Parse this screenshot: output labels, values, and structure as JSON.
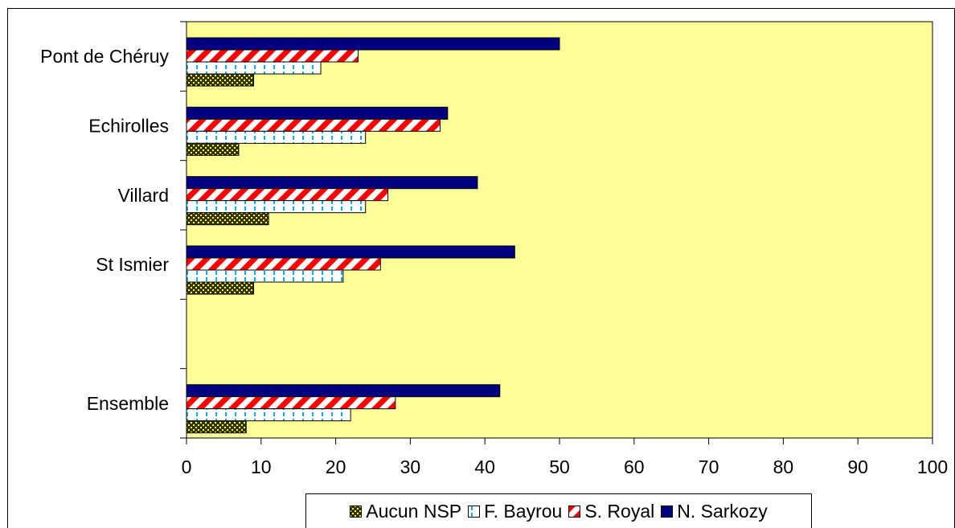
{
  "chart_data": {
    "type": "bar",
    "orientation": "horizontal",
    "categories": [
      "Pont de Chéruy",
      "Echirolles",
      "Villard",
      "St Ismier",
      "",
      "Ensemble"
    ],
    "series": [
      {
        "name": "N. Sarkozy",
        "values": [
          50,
          35,
          39,
          44,
          null,
          42
        ],
        "color": "#000080",
        "pattern": "solid"
      },
      {
        "name": "S. Royal",
        "values": [
          23,
          34,
          27,
          26,
          null,
          28
        ],
        "color": "#ff0000",
        "pattern": "diagonal-stripes"
      },
      {
        "name": "F. Bayrou",
        "values": [
          18,
          24,
          24,
          21,
          null,
          22
        ],
        "color": "#00ccff",
        "pattern": "dashes"
      },
      {
        "name": "Aucun NSP",
        "values": [
          9,
          7,
          11,
          9,
          null,
          8
        ],
        "color": "#333300",
        "pattern": "yellow-dots"
      }
    ],
    "xlim": [
      0,
      100
    ],
    "x_ticks": [
      0,
      10,
      20,
      30,
      40,
      50,
      60,
      70,
      80,
      90,
      100
    ],
    "plot_background": "#ffff99",
    "grid": false,
    "legend_position": "bottom",
    "legend_order": [
      "Aucun NSP",
      "F. Bayrou",
      "S. Royal",
      "N. Sarkozy"
    ]
  }
}
